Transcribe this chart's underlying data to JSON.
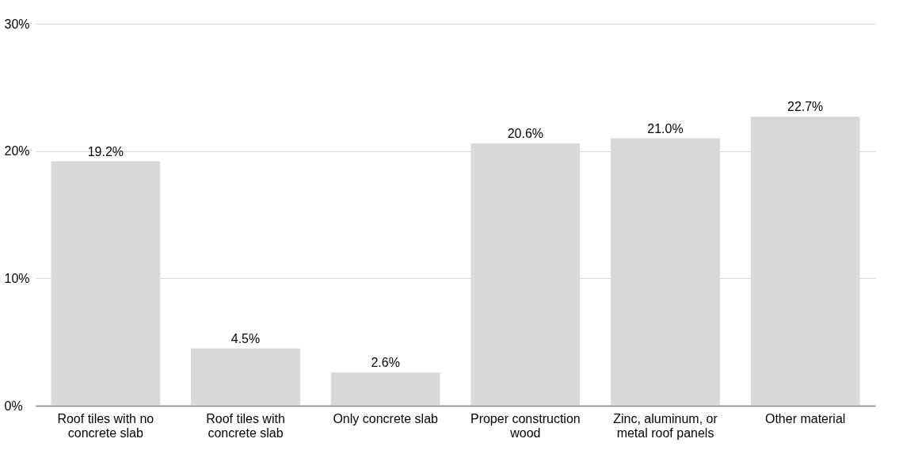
{
  "chart_data": {
    "type": "bar",
    "categories": [
      "Roof tiles with no concrete slab",
      "Roof tiles with concrete slab",
      "Only concrete slab",
      "Proper construction wood",
      "Zinc, aluminum, or metal roof panels",
      "Other material"
    ],
    "values": [
      19.2,
      4.5,
      2.6,
      20.6,
      21.0,
      22.7
    ],
    "value_labels": [
      "19.2%",
      "4.5%",
      "2.6%",
      "20.6%",
      "21.0%",
      "22.7%"
    ],
    "color": "#d9d9d9",
    "ylim": [
      0,
      30
    ],
    "yticks": [
      {
        "value": 0,
        "label": "0%"
      },
      {
        "value": 10,
        "label": "10%"
      },
      {
        "value": 20,
        "label": "20%"
      },
      {
        "value": 30,
        "label": "30%"
      }
    ],
    "grid": "y"
  }
}
